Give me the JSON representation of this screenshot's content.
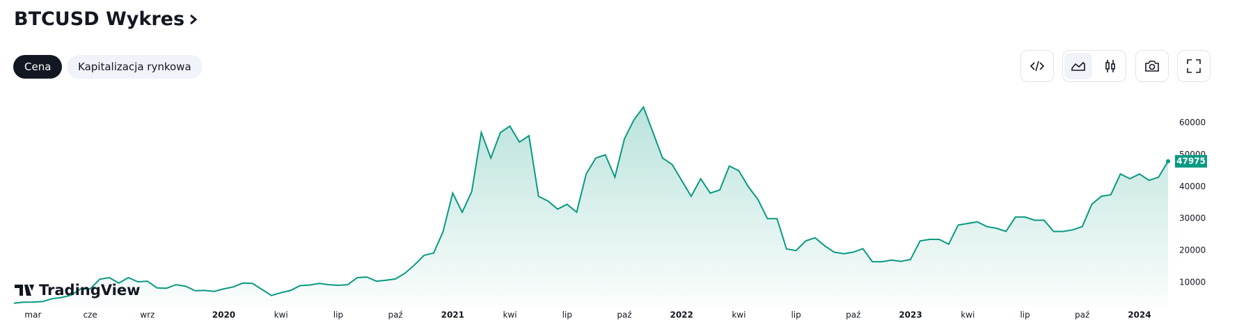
{
  "header": {
    "title": "BTCUSD Wykres",
    "tabs": [
      "Cena",
      "Kapitalizacja rynkowa"
    ]
  },
  "chart_data": {
    "type": "line",
    "watermark": "TradingView",
    "color": "#089981",
    "grid": false,
    "ylim": [
      3000,
      68000
    ],
    "yticks": [
      10000,
      20000,
      30000,
      40000,
      50000,
      60000
    ],
    "categories": [
      null,
      null,
      "mar",
      null,
      null,
      null,
      null,
      null,
      "cze",
      null,
      null,
      null,
      null,
      null,
      "wrz",
      null,
      null,
      null,
      null,
      null,
      null,
      null,
      "2020",
      null,
      null,
      null,
      null,
      null,
      "kwi",
      null,
      null,
      null,
      null,
      null,
      "lip",
      null,
      null,
      null,
      null,
      null,
      "paź",
      null,
      null,
      null,
      null,
      null,
      "2021",
      null,
      null,
      null,
      null,
      null,
      "kwi",
      null,
      null,
      null,
      null,
      null,
      "lip",
      null,
      null,
      null,
      null,
      null,
      "paź",
      null,
      null,
      null,
      null,
      null,
      "2022",
      null,
      null,
      null,
      null,
      null,
      "kwi",
      null,
      null,
      null,
      null,
      null,
      "lip",
      null,
      null,
      null,
      null,
      null,
      "paź",
      null,
      null,
      null,
      null,
      null,
      "2023",
      null,
      null,
      null,
      null,
      null,
      "kwi",
      null,
      null,
      null,
      null,
      null,
      "lip",
      null,
      null,
      null,
      null,
      null,
      "paź",
      null,
      null,
      null,
      null,
      null,
      "2024",
      null,
      null,
      null
    ],
    "values": [
      3500,
      3800,
      3850,
      4000,
      4900,
      5300,
      6000,
      8000,
      8000,
      11000,
      11500,
      9800,
      11500,
      10200,
      10400,
      8300,
      8200,
      9300,
      8800,
      7400,
      7500,
      7200,
      8000,
      8600,
      9800,
      9700,
      7800,
      5900,
      6800,
      7500,
      9000,
      9200,
      9700,
      9300,
      9100,
      9300,
      11500,
      11700,
      10400,
      10700,
      11100,
      12900,
      15500,
      18500,
      19200,
      26000,
      38000,
      32000,
      38500,
      57000,
      49000,
      57000,
      59000,
      54000,
      56000,
      37000,
      35500,
      33000,
      34500,
      32000,
      44000,
      49000,
      50000,
      43000,
      55000,
      61000,
      65000,
      57000,
      49000,
      47000,
      42000,
      37000,
      42500,
      38000,
      39000,
      46500,
      45000,
      40000,
      36000,
      30000,
      30000,
      20500,
      20000,
      23000,
      24000,
      21500,
      19500,
      19000,
      19500,
      20600,
      16500,
      16500,
      17000,
      16600,
      17200,
      23000,
      23500,
      23500,
      22000,
      28000,
      28500,
      29000,
      27500,
      27000,
      26000,
      30500,
      30500,
      29500,
      29500,
      26000,
      26000,
      26500,
      27500,
      34500,
      37000,
      37500,
      44000,
      42500,
      44000,
      42000,
      43000,
      47975
    ]
  }
}
